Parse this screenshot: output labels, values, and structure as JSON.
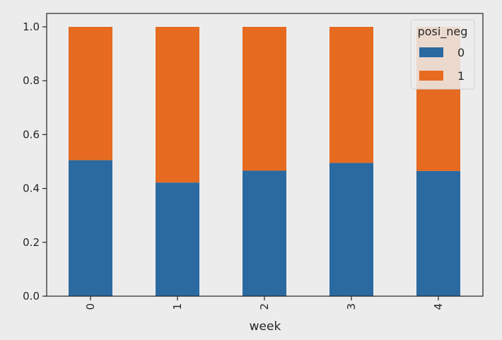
{
  "chart_data": {
    "type": "bar",
    "stacked": true,
    "categories": [
      "0",
      "1",
      "2",
      "3",
      "4"
    ],
    "series": [
      {
        "name": "0",
        "values": [
          0.505,
          0.422,
          0.466,
          0.495,
          0.465
        ],
        "color": "#2a6aa1"
      },
      {
        "name": "1",
        "values": [
          0.495,
          0.578,
          0.534,
          0.505,
          0.535
        ],
        "color": "#e66a1f"
      }
    ],
    "xlabel": "week",
    "ylabel": "",
    "ylim": [
      0,
      1.0
    ],
    "yticks": [
      "0.0",
      "0.2",
      "0.4",
      "0.6",
      "0.8",
      "1.0"
    ],
    "xtick_rotation": "vertical",
    "grid": false,
    "legend": {
      "title": "posi_neg",
      "placement": "top-right"
    }
  }
}
